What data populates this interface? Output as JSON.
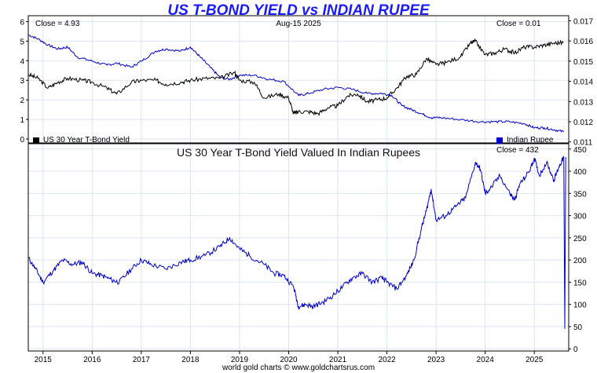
{
  "chart_data": [
    {
      "type": "line",
      "title": "US T-BOND YIELD vs INDIAN RUPEE",
      "date_label": "Aug-15  2025",
      "left_close_label": "Close = 4.93",
      "right_close_label": "Close = 0.01",
      "x_ticks": [
        "2015",
        "2016",
        "2017",
        "2018",
        "2019",
        "2020",
        "2021",
        "2022",
        "2023",
        "2024",
        "2025"
      ],
      "x_range": [
        2014.7,
        2025.7
      ],
      "y_left": {
        "ticks": [
          "0",
          "1",
          "2",
          "3",
          "4",
          "5",
          "6"
        ],
        "range": [
          -0.2,
          6.3
        ]
      },
      "y_right": {
        "ticks": [
          "0.011",
          "0.012",
          "0.013",
          "0.014",
          "0.015",
          "0.016",
          "0.017"
        ],
        "range": [
          0.01095,
          0.01725
        ]
      },
      "grid": true,
      "series": [
        {
          "name": "US 30 Year T-Bond Yield",
          "axis": "left",
          "color": "#000000",
          "x": [
            2014.7,
            2014.9,
            2015.1,
            2015.3,
            2015.5,
            2015.8,
            2016.0,
            2016.3,
            2016.5,
            2016.8,
            2017.0,
            2017.3,
            2017.5,
            2017.8,
            2018.0,
            2018.3,
            2018.6,
            2018.9,
            2019.0,
            2019.3,
            2019.5,
            2019.8,
            2020.0,
            2020.1,
            2020.2,
            2020.4,
            2020.6,
            2020.8,
            2021.0,
            2021.2,
            2021.4,
            2021.6,
            2021.8,
            2022.0,
            2022.2,
            2022.4,
            2022.6,
            2022.8,
            2023.0,
            2023.2,
            2023.5,
            2023.7,
            2023.8,
            2024.0,
            2024.2,
            2024.4,
            2024.6,
            2024.8,
            2025.0,
            2025.2,
            2025.4,
            2025.6
          ],
          "values": [
            3.3,
            3.1,
            2.6,
            2.9,
            3.1,
            3.0,
            2.9,
            2.6,
            2.3,
            2.9,
            3.0,
            3.0,
            2.8,
            2.9,
            3.0,
            3.1,
            3.1,
            3.4,
            3.0,
            2.9,
            2.1,
            2.3,
            2.1,
            1.3,
            1.4,
            1.4,
            1.3,
            1.6,
            1.7,
            2.2,
            2.3,
            1.9,
            2.0,
            2.1,
            2.6,
            3.2,
            3.3,
            4.1,
            3.8,
            3.9,
            4.2,
            4.9,
            5.0,
            4.3,
            4.4,
            4.6,
            4.4,
            4.7,
            4.7,
            4.8,
            4.9,
            4.93
          ]
        },
        {
          "name": "Indian Rupee",
          "axis": "right",
          "color": "#0000cc",
          "x": [
            2014.7,
            2014.9,
            2015.1,
            2015.3,
            2015.5,
            2015.7,
            2016.0,
            2016.3,
            2016.5,
            2016.8,
            2017.0,
            2017.3,
            2017.5,
            2017.8,
            2018.0,
            2018.2,
            2018.4,
            2018.6,
            2018.8,
            2019.0,
            2019.3,
            2019.6,
            2019.9,
            2020.2,
            2020.4,
            2020.7,
            2021.0,
            2021.3,
            2021.6,
            2021.9,
            2022.1,
            2022.3,
            2022.5,
            2022.7,
            2022.9,
            2023.1,
            2023.5,
            2023.9,
            2024.2,
            2024.5,
            2024.8,
            2025.0,
            2025.2,
            2025.4,
            2025.6
          ],
          "values": [
            0.0163,
            0.0161,
            0.0158,
            0.0156,
            0.0157,
            0.0152,
            0.015,
            0.0148,
            0.0149,
            0.0147,
            0.015,
            0.0155,
            0.0156,
            0.0155,
            0.0157,
            0.0152,
            0.0147,
            0.0142,
            0.0141,
            0.0143,
            0.0143,
            0.0141,
            0.014,
            0.0133,
            0.0134,
            0.0136,
            0.0137,
            0.0136,
            0.0134,
            0.0134,
            0.0133,
            0.0128,
            0.0126,
            0.0124,
            0.0122,
            0.0122,
            0.0121,
            0.012,
            0.012,
            0.012,
            0.0119,
            0.0117,
            0.0117,
            0.0116,
            0.0115
          ]
        }
      ]
    },
    {
      "type": "line",
      "title": "US 30 Year T-Bond Yield Valued In Indian Rupees",
      "close_label": "Close = 432",
      "x_ticks": [
        "2015",
        "2016",
        "2017",
        "2018",
        "2019",
        "2020",
        "2021",
        "2022",
        "2023",
        "2024",
        "2025"
      ],
      "x_range": [
        2014.7,
        2025.7
      ],
      "y_right": {
        "ticks": [
          "0",
          "50",
          "100",
          "150",
          "200",
          "250",
          "300",
          "350",
          "400",
          "450"
        ],
        "range": [
          -5,
          462
        ]
      },
      "grid": true,
      "series": [
        {
          "name": "US 30 Year T-Bond Yield Valued In Indian Rupees",
          "color": "#0000cc",
          "x": [
            2014.7,
            2014.85,
            2015.0,
            2015.2,
            2015.4,
            2015.6,
            2015.8,
            2016.0,
            2016.2,
            2016.4,
            2016.55,
            2016.8,
            2017.0,
            2017.2,
            2017.5,
            2017.8,
            2018.0,
            2018.3,
            2018.6,
            2018.8,
            2019.0,
            2019.2,
            2019.5,
            2019.7,
            2019.9,
            2020.1,
            2020.2,
            2020.35,
            2020.5,
            2020.7,
            2020.9,
            2021.1,
            2021.3,
            2021.5,
            2021.7,
            2021.9,
            2022.0,
            2022.2,
            2022.4,
            2022.55,
            2022.7,
            2022.8,
            2022.9,
            2023.0,
            2023.2,
            2023.4,
            2023.6,
            2023.8,
            2023.9,
            2024.0,
            2024.1,
            2024.3,
            2024.5,
            2024.6,
            2024.7,
            2024.9,
            2025.0,
            2025.1,
            2025.25,
            2025.4,
            2025.5,
            2025.6
          ],
          "values": [
            205,
            180,
            150,
            175,
            200,
            190,
            195,
            170,
            165,
            155,
            150,
            180,
            200,
            190,
            180,
            195,
            200,
            210,
            230,
            250,
            225,
            210,
            190,
            170,
            165,
            140,
            95,
            100,
            95,
            105,
            120,
            140,
            160,
            170,
            150,
            160,
            150,
            135,
            165,
            200,
            270,
            310,
            360,
            290,
            300,
            320,
            340,
            420,
            405,
            350,
            360,
            390,
            350,
            335,
            370,
            400,
            430,
            390,
            420,
            380,
            410,
            432
          ]
        }
      ]
    }
  ],
  "legend": {
    "left_label": "US 30 Year T-Bond Yield",
    "right_label": "Indian Rupee"
  },
  "credit": "world gold charts © www.goldchartsrus.com"
}
